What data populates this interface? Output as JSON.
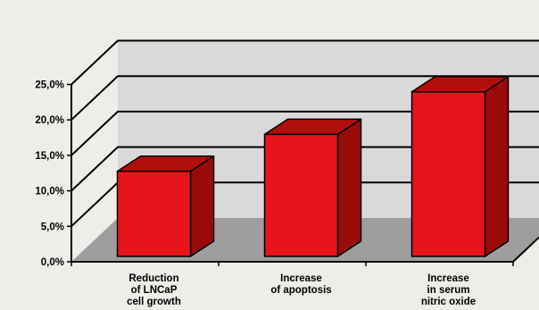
{
  "chart_data": {
    "type": "bar",
    "title": "",
    "xlabel": "",
    "ylabel": "",
    "categories": [
      [
        "Reduction",
        "of LNCaP",
        "cell growth"
      ],
      [
        "Increase",
        "of apoptosis"
      ],
      [
        "Increase",
        "in serum",
        "nitric oxide"
      ]
    ],
    "values": [
      12.0,
      17.2,
      23.2
    ],
    "ylim": [
      0,
      25
    ],
    "yticks": [
      "0,0%",
      "5,0%",
      "10,0%",
      "15,0%",
      "20,0%",
      "25,0%"
    ],
    "ytick_values": [
      0,
      5,
      10,
      15,
      20,
      25
    ],
    "grid": true,
    "three_d": true,
    "colors": {
      "bar_front": "#e8141b",
      "bar_side": "#9a0b0b",
      "bar_top": "#b30e0e",
      "back_wall": "#d9d9d9",
      "floor": "#9e9e9e",
      "background": "#efedea"
    }
  }
}
